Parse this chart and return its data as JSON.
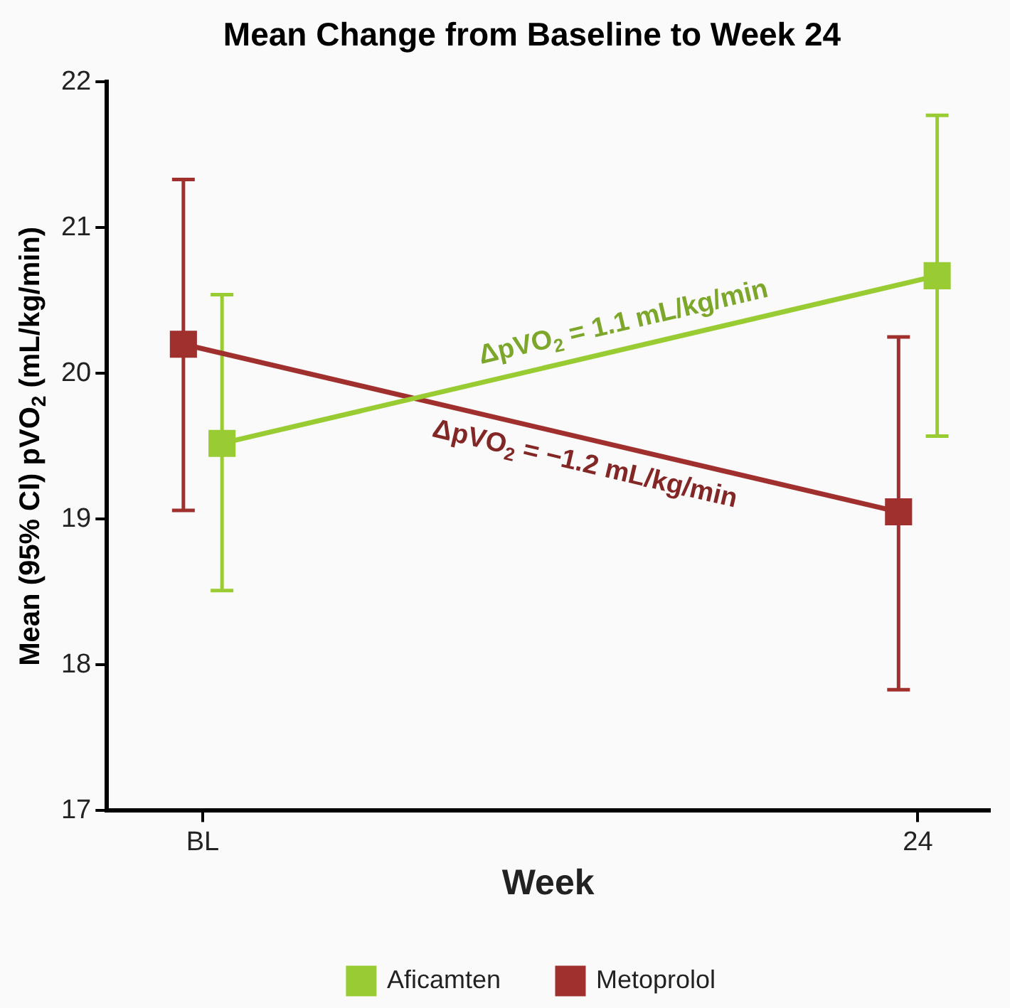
{
  "chart_data": {
    "type": "line",
    "title": "Mean Change from Baseline to Week 24",
    "xlabel": "Week",
    "ylabel": "Mean (95% CI) pVO$_{2}$ (mL/kg/min)",
    "categories": [
      "BL",
      "24"
    ],
    "series": [
      {
        "name": "Aficamten",
        "color": "#99cc33",
        "values": [
          19.52,
          20.67
        ],
        "errors": [
          [
            18.51,
            20.54
          ],
          [
            19.57,
            21.77
          ]
        ]
      },
      {
        "name": "Metoprolol",
        "color": "#a0302e",
        "values": [
          20.2,
          19.05
        ],
        "errors": [
          [
            19.06,
            21.33
          ],
          [
            17.83,
            20.25
          ]
        ]
      }
    ],
    "annotations": [
      "ΔpVO$_{2}$ = 1.1 mL/kg/min",
      "ΔpVO$_{2}$ = −1.2 mL/kg/min"
    ],
    "ylim": [
      17,
      22
    ],
    "yticks": [
      17,
      18,
      19,
      20,
      21,
      22
    ],
    "grid": false,
    "legend": "bottom",
    "marker": "square",
    "line_style": "solid"
  }
}
